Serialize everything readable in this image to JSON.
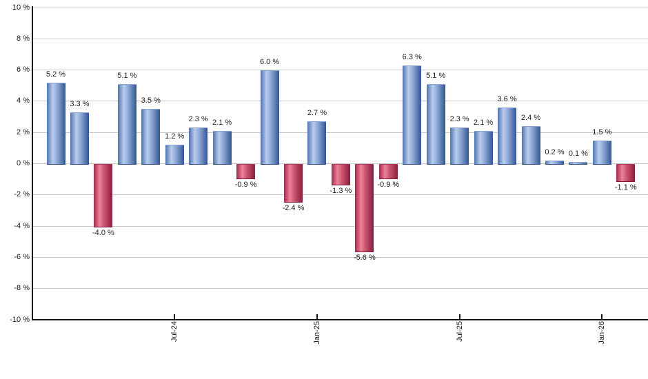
{
  "chart_data": {
    "type": "bar",
    "title": "",
    "xlabel": "",
    "ylabel": "",
    "values": [
      5.2,
      3.3,
      -4.0,
      5.1,
      3.5,
      1.2,
      2.3,
      2.1,
      -0.9,
      6.0,
      -2.4,
      2.7,
      -1.3,
      -5.6,
      -0.9,
      6.3,
      5.1,
      2.3,
      2.1,
      3.6,
      2.4,
      0.2,
      0.1,
      1.5,
      -1.1
    ],
    "bar_count": 25,
    "value_label_suffix": " %",
    "value_label_decimals": 1,
    "x_tick_labels": [
      {
        "index": 5,
        "label": "Jul-24"
      },
      {
        "index": 11,
        "label": "Jan-25"
      },
      {
        "index": 17,
        "label": "Jul-25"
      },
      {
        "index": 23,
        "label": "Jan-26"
      }
    ],
    "y_axis": {
      "min": -10,
      "max": 10,
      "step": 2,
      "suffix": " %"
    },
    "grid": true,
    "legend_position": "none",
    "colors": {
      "positive_bar_gradient": [
        "#4f73ad",
        "#b9cced",
        "#8fa9d6",
        "#315694"
      ],
      "negative_bar_gradient": [
        "#a62950",
        "#ec8499",
        "#cc5672",
        "#8c1b3e"
      ],
      "gridline": "#c8c8c8",
      "axis": "#141414",
      "label_text": "#1b1b1b",
      "background": "#ffffff"
    }
  }
}
